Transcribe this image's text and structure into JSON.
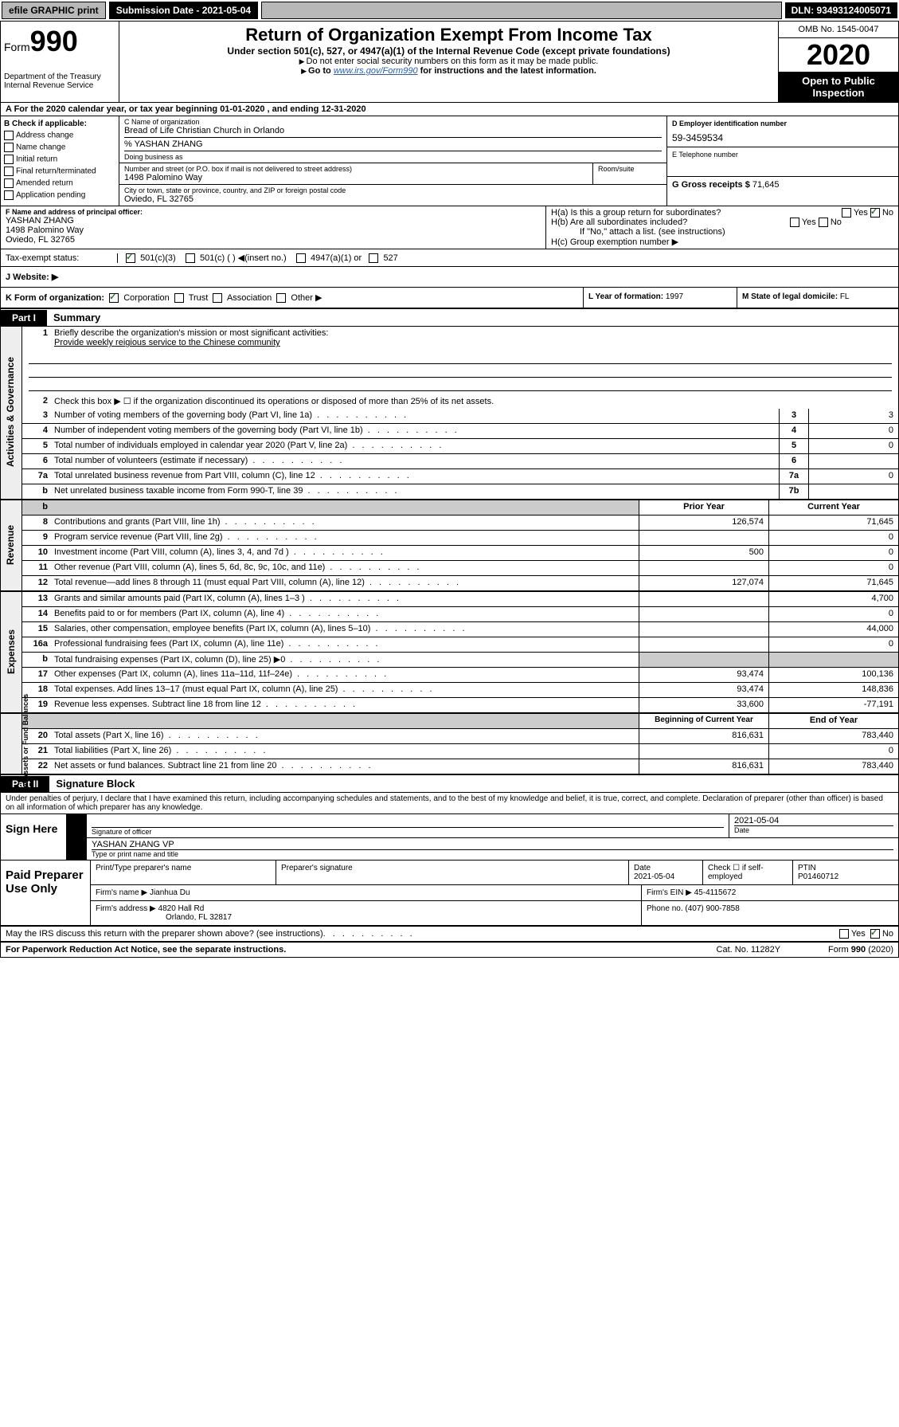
{
  "topbar": {
    "efile": "efile GRAPHIC print",
    "submission_label": "Submission Date - 2021-05-04",
    "dln": "DLN: 93493124005071"
  },
  "header": {
    "form_prefix": "Form",
    "form_number": "990",
    "dept": "Department of the Treasury",
    "irs": "Internal Revenue Service",
    "title": "Return of Organization Exempt From Income Tax",
    "subtitle": "Under section 501(c), 527, or 4947(a)(1) of the Internal Revenue Code (except private foundations)",
    "note1": "Do not enter social security numbers on this form as it may be made public.",
    "note2_a": "Go to ",
    "note2_link": "www.irs.gov/Form990",
    "note2_b": " for instructions and the latest information.",
    "omb": "OMB No. 1545-0047",
    "year": "2020",
    "open_public": "Open to Public Inspection"
  },
  "section_a": "A For the 2020 calendar year, or tax year beginning 01-01-2020     , and ending 12-31-2020",
  "col_b": {
    "header": "B Check if applicable:",
    "opts": [
      "Address change",
      "Name change",
      "Initial return",
      "Final return/terminated",
      "Amended return",
      "Application pending"
    ]
  },
  "col_c": {
    "name_label": "C Name of organization",
    "name": "Bread of Life Christian Church in Orlando",
    "care_of": "% YASHAN ZHANG",
    "dba_label": "Doing business as",
    "addr_label": "Number and street (or P.O. box if mail is not delivered to street address)",
    "addr": "1498 Palomino Way",
    "room_label": "Room/suite",
    "city_label": "City or town, state or province, country, and ZIP or foreign postal code",
    "city": "Oviedo, FL  32765"
  },
  "col_d": {
    "label": "D Employer identification number",
    "val": "59-3459534"
  },
  "col_e": {
    "label": "E Telephone number",
    "val": ""
  },
  "col_g": {
    "label": "G Gross receipts $",
    "val": "71,645"
  },
  "col_f": {
    "label": "F  Name and address of principal officer:",
    "name": "YASHAN ZHANG",
    "addr": "1498 Palomino Way",
    "city": "Oviedo, FL  32765"
  },
  "col_h": {
    "a": "H(a)  Is this a group return for subordinates?",
    "b": "H(b)  Are all subordinates included?",
    "note": "If \"No,\" attach a list. (see instructions)",
    "c": "H(c)  Group exemption number ▶"
  },
  "tax_status": {
    "label": "Tax-exempt status:",
    "o1": "501(c)(3)",
    "o2": "501(c) (   ) ◀(insert no.)",
    "o3": "4947(a)(1) or",
    "o4": "527"
  },
  "website": {
    "label": "J   Website: ▶"
  },
  "row_k": {
    "label": "K Form of organization:",
    "o1": "Corporation",
    "o2": "Trust",
    "o3": "Association",
    "o4": "Other ▶"
  },
  "row_l": {
    "label": "L Year of formation:",
    "val": "1997"
  },
  "row_m": {
    "label": "M State of legal domicile:",
    "val": "FL"
  },
  "part1": {
    "tab": "Part I",
    "name": "Summary"
  },
  "mission": {
    "q": "Briefly describe the organization's mission or most significant activities:",
    "text": "Provide weekly reigious service to the Chinese community"
  },
  "gov_lines": [
    {
      "n": "2",
      "t": "Check this box ▶ ☐  if the organization discontinued its operations or disposed of more than 25% of its net assets."
    },
    {
      "n": "3",
      "t": "Number of voting members of the governing body (Part VI, line 1a)",
      "c": "3",
      "v": "3"
    },
    {
      "n": "4",
      "t": "Number of independent voting members of the governing body (Part VI, line 1b)",
      "c": "4",
      "v": "0"
    },
    {
      "n": "5",
      "t": "Total number of individuals employed in calendar year 2020 (Part V, line 2a)",
      "c": "5",
      "v": "0"
    },
    {
      "n": "6",
      "t": "Total number of volunteers (estimate if necessary)",
      "c": "6",
      "v": ""
    },
    {
      "n": "7a",
      "t": "Total unrelated business revenue from Part VIII, column (C), line 12",
      "c": "7a",
      "v": "0"
    },
    {
      "n": "b",
      "t": "Net unrelated business taxable income from Form 990-T, line 39",
      "c": "7b",
      "v": ""
    }
  ],
  "twocol_hdr": {
    "prior": "Prior Year",
    "current": "Current Year"
  },
  "revenue": [
    {
      "n": "8",
      "t": "Contributions and grants (Part VIII, line 1h)",
      "p": "126,574",
      "c": "71,645"
    },
    {
      "n": "9",
      "t": "Program service revenue (Part VIII, line 2g)",
      "p": "",
      "c": "0"
    },
    {
      "n": "10",
      "t": "Investment income (Part VIII, column (A), lines 3, 4, and 7d )",
      "p": "500",
      "c": "0"
    },
    {
      "n": "11",
      "t": "Other revenue (Part VIII, column (A), lines 5, 6d, 8c, 9c, 10c, and 11e)",
      "p": "",
      "c": "0"
    },
    {
      "n": "12",
      "t": "Total revenue—add lines 8 through 11 (must equal Part VIII, column (A), line 12)",
      "p": "127,074",
      "c": "71,645"
    }
  ],
  "expenses": [
    {
      "n": "13",
      "t": "Grants and similar amounts paid (Part IX, column (A), lines 1–3 )",
      "p": "",
      "c": "4,700"
    },
    {
      "n": "14",
      "t": "Benefits paid to or for members (Part IX, column (A), line 4)",
      "p": "",
      "c": "0"
    },
    {
      "n": "15",
      "t": "Salaries, other compensation, employee benefits (Part IX, column (A), lines 5–10)",
      "p": "",
      "c": "44,000"
    },
    {
      "n": "16a",
      "t": "Professional fundraising fees (Part IX, column (A), line 11e)",
      "p": "",
      "c": "0"
    },
    {
      "n": "b",
      "t": "Total fundraising expenses (Part IX, column (D), line 25) ▶0",
      "p": "shade",
      "c": "shade"
    },
    {
      "n": "17",
      "t": "Other expenses (Part IX, column (A), lines 11a–11d, 11f–24e)",
      "p": "93,474",
      "c": "100,136"
    },
    {
      "n": "18",
      "t": "Total expenses. Add lines 13–17 (must equal Part IX, column (A), line 25)",
      "p": "93,474",
      "c": "148,836"
    },
    {
      "n": "19",
      "t": "Revenue less expenses. Subtract line 18 from line 12",
      "p": "33,600",
      "c": "-77,191"
    }
  ],
  "net_hdr": {
    "begin": "Beginning of Current Year",
    "end": "End of Year"
  },
  "netassets": [
    {
      "n": "20",
      "t": "Total assets (Part X, line 16)",
      "p": "816,631",
      "c": "783,440"
    },
    {
      "n": "21",
      "t": "Total liabilities (Part X, line 26)",
      "p": "",
      "c": "0"
    },
    {
      "n": "22",
      "t": "Net assets or fund balances. Subtract line 21 from line 20",
      "p": "816,631",
      "c": "783,440"
    }
  ],
  "part2": {
    "tab": "Part II",
    "name": "Signature Block"
  },
  "penalties": "Under penalties of perjury, I declare that I have examined this return, including accompanying schedules and statements, and to the best of my knowledge and belief, it is true, correct, and complete. Declaration of preparer (other than officer) is based on all information of which preparer has any knowledge.",
  "sign": {
    "here": "Sign Here",
    "sig_label": "Signature of officer",
    "date": "2021-05-04",
    "date_label": "Date",
    "name": "YASHAN ZHANG VP",
    "name_label": "Type or print name and title"
  },
  "prep": {
    "title": "Paid Preparer Use Only",
    "print_label": "Print/Type preparer's name",
    "sig_label": "Preparer's signature",
    "date_label": "Date",
    "date": "2021-05-04",
    "check_label": "Check ☐ if self-employed",
    "ptin_label": "PTIN",
    "ptin": "P01460712",
    "firm_name_label": "Firm's name    ▶",
    "firm_name": "Jianhua Du",
    "firm_ein_label": "Firm's EIN ▶",
    "firm_ein": "45-4115672",
    "firm_addr_label": "Firm's address ▶",
    "firm_addr": "4820 Hall Rd",
    "firm_city": "Orlando, FL  32817",
    "phone_label": "Phone no.",
    "phone": "(407) 900-7858"
  },
  "discuss": "May the IRS discuss this return with the preparer shown above? (see instructions)",
  "footer": {
    "left": "For Paperwork Reduction Act Notice, see the separate instructions.",
    "mid": "Cat. No. 11282Y",
    "right": "Form 990 (2020)"
  },
  "vtabs": {
    "gov": "Activities & Governance",
    "rev": "Revenue",
    "exp": "Expenses",
    "net": "Net Assets or Fund Balances"
  },
  "yn": {
    "yes": "Yes",
    "no": "No"
  }
}
